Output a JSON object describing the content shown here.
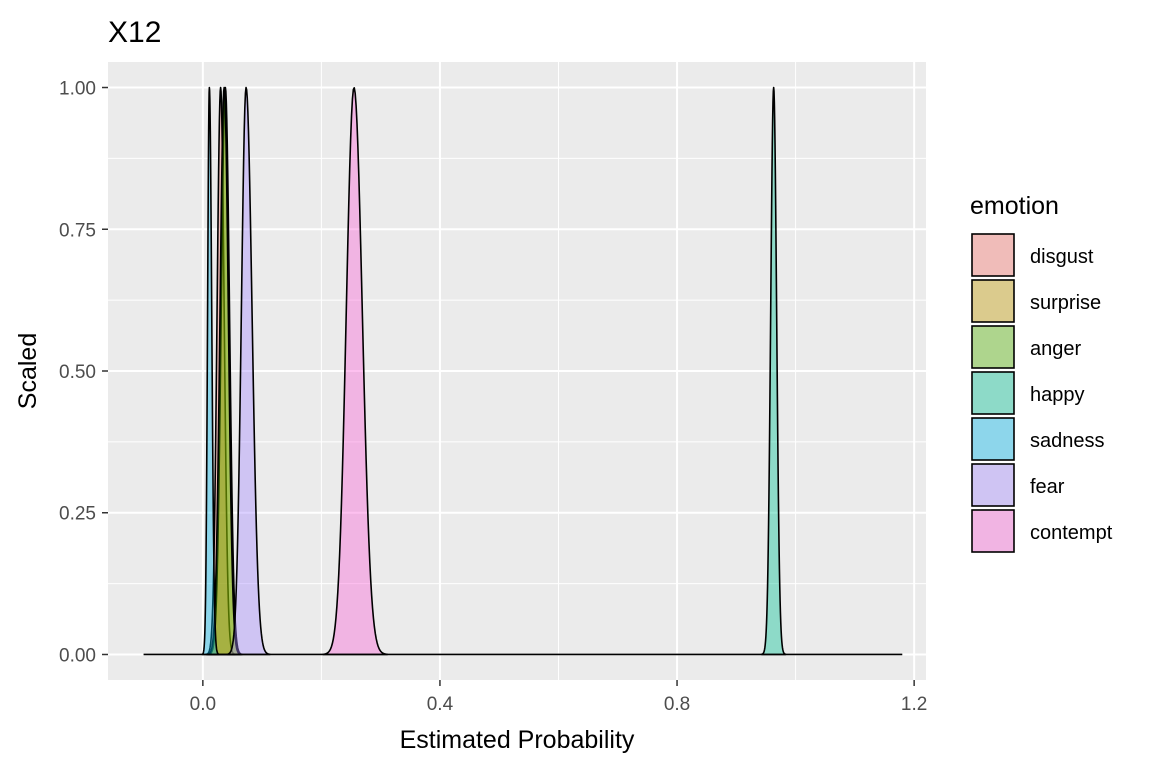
{
  "chart_data": {
    "type": "area",
    "title": "X12",
    "xlabel": "Estimated Probability",
    "ylabel": "Scaled",
    "xlim": [
      -0.16,
      1.22
    ],
    "ylim": [
      -0.045,
      1.045
    ],
    "x_ticks": [
      0.0,
      0.4,
      0.8,
      1.2
    ],
    "x_tick_labels": [
      "0.0",
      "0.4",
      "0.8",
      "1.2"
    ],
    "y_ticks": [
      0.0,
      0.25,
      0.5,
      0.75,
      1.0
    ],
    "y_tick_labels": [
      "0.00",
      "0.25",
      "0.50",
      "0.75",
      "1.00"
    ],
    "x_range_drawn": [
      -0.1,
      1.18
    ],
    "grid": true,
    "panel_background": "#ebebeb",
    "grid_color": "#ffffff",
    "legend": {
      "title": "emotion",
      "position": "right",
      "entries": [
        "disgust",
        "surprise",
        "anger",
        "happy",
        "sadness",
        "fear",
        "contempt"
      ]
    },
    "series": [
      {
        "name": "disgust",
        "color": "#f8766d",
        "peak": 0.03,
        "spread_left": 0.006,
        "spread_right": 0.006
      },
      {
        "name": "surprise",
        "color": "#c49a00",
        "peak": 0.038,
        "spread_left": 0.007,
        "spread_right": 0.007
      },
      {
        "name": "anger",
        "color": "#53b400",
        "peak": 0.036,
        "spread_left": 0.007,
        "spread_right": 0.007
      },
      {
        "name": "happy",
        "color": "#00c094",
        "peak": 0.963,
        "spread_left": 0.005,
        "spread_right": 0.005
      },
      {
        "name": "sadness",
        "color": "#00b6eb",
        "peak": 0.011,
        "spread_left": 0.003,
        "spread_right": 0.004
      },
      {
        "name": "fear",
        "color": "#a58aff",
        "peak": 0.073,
        "spread_left": 0.008,
        "spread_right": 0.01
      },
      {
        "name": "contempt",
        "color": "#fb61d7",
        "peak": 0.255,
        "spread_left": 0.013,
        "spread_right": 0.014
      }
    ]
  }
}
